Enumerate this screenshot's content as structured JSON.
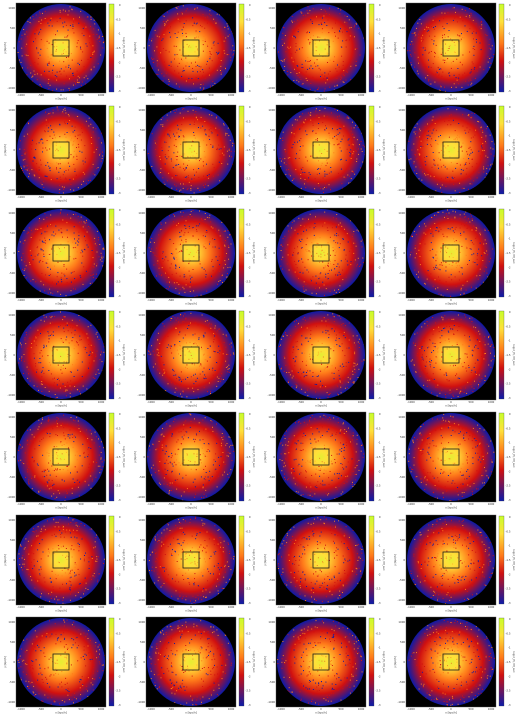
{
  "figure": {
    "rows": 7,
    "cols": 4,
    "x_axis_label": "x [kpc/h]",
    "y_axis_label": "y [kpc/h]",
    "colorbar_label": "log(σ_P) / M_sun",
    "x_ticks": [
      "-1000",
      "-500",
      "0",
      "500",
      "1000"
    ],
    "y_ticks": [
      "1000",
      "500",
      "0",
      "-500",
      "-1000"
    ],
    "colorbar_ticks": [
      "0",
      "-0.5",
      "-1",
      "-1.5",
      "-2",
      "-2.5",
      "-3"
    ],
    "colors": {
      "background": "#000000",
      "outer": "#0b1aa8",
      "mid": "#d01010",
      "inner": "#ff7a1a",
      "core": "#ffe03a",
      "hot": "#c8ff2a",
      "box_edge": "#1a1a1a"
    }
  }
}
